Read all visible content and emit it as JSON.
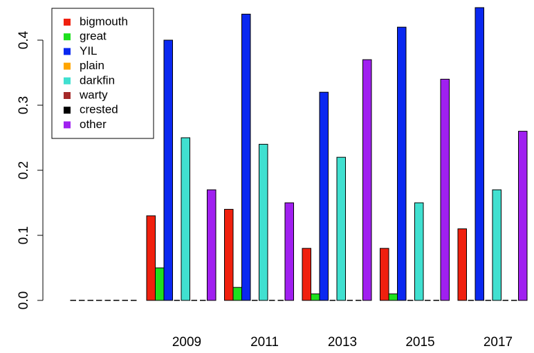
{
  "chart_data": {
    "type": "bar",
    "categories": [
      null,
      "2009",
      "2011",
      "2013",
      "2015",
      "2017"
    ],
    "series": [
      {
        "name": "bigmouth",
        "color": "#f0200e",
        "values": [
          0,
          0.13,
          0.14,
          0.08,
          0.08,
          0.11
        ]
      },
      {
        "name": "great",
        "color": "#1ee01e",
        "values": [
          0,
          0.05,
          0.02,
          0.01,
          0.01,
          0
        ]
      },
      {
        "name": "YIL",
        "color": "#0a28f0",
        "values": [
          0,
          0.4,
          0.44,
          0.32,
          0.42,
          0.45
        ]
      },
      {
        "name": "plain",
        "color": "#ffa500",
        "values": [
          0,
          0,
          0,
          0,
          0,
          0
        ]
      },
      {
        "name": "darkfin",
        "color": "#40e0d0",
        "values": [
          0,
          0.25,
          0.24,
          0.22,
          0.15,
          0.17
        ]
      },
      {
        "name": "warty",
        "color": "#a52a2a",
        "values": [
          0,
          0,
          0,
          0,
          0,
          0
        ]
      },
      {
        "name": "crested",
        "color": "#000000",
        "values": [
          0,
          0,
          0,
          0,
          0,
          0
        ]
      },
      {
        "name": "other",
        "color": "#a020f0",
        "values": [
          0,
          0.17,
          0.15,
          0.37,
          0.34,
          0.26
        ]
      }
    ],
    "ylim": [
      0,
      0.45
    ],
    "yticks": [
      {
        "value": 0,
        "label": "0.0"
      },
      0.1,
      0.2,
      0.3,
      0.4
    ],
    "legend": "top-left"
  }
}
